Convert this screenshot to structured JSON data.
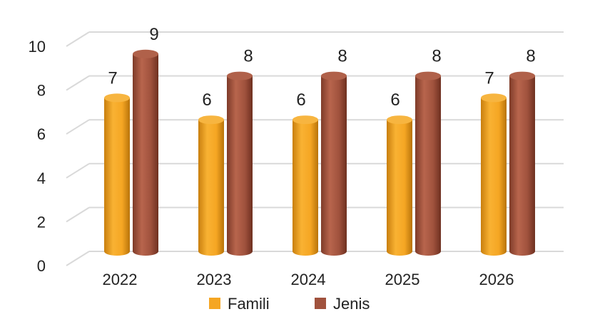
{
  "chart_data": {
    "type": "bar",
    "style": "3d-cylinder",
    "categories": [
      "2022",
      "2023",
      "2024",
      "2025",
      "2026"
    ],
    "series": [
      {
        "name": "Famili",
        "values": [
          7,
          6,
          6,
          6,
          7
        ],
        "color": "#F5A623"
      },
      {
        "name": "Jenis",
        "values": [
          9,
          8,
          8,
          8,
          8
        ],
        "color": "#A0523D"
      }
    ],
    "title": "",
    "xlabel": "",
    "ylabel": "",
    "ylim": [
      0,
      10
    ],
    "yticks": [
      "0",
      "2",
      "4",
      "6",
      "8",
      "10"
    ],
    "grid": true,
    "legend": "bottom"
  }
}
